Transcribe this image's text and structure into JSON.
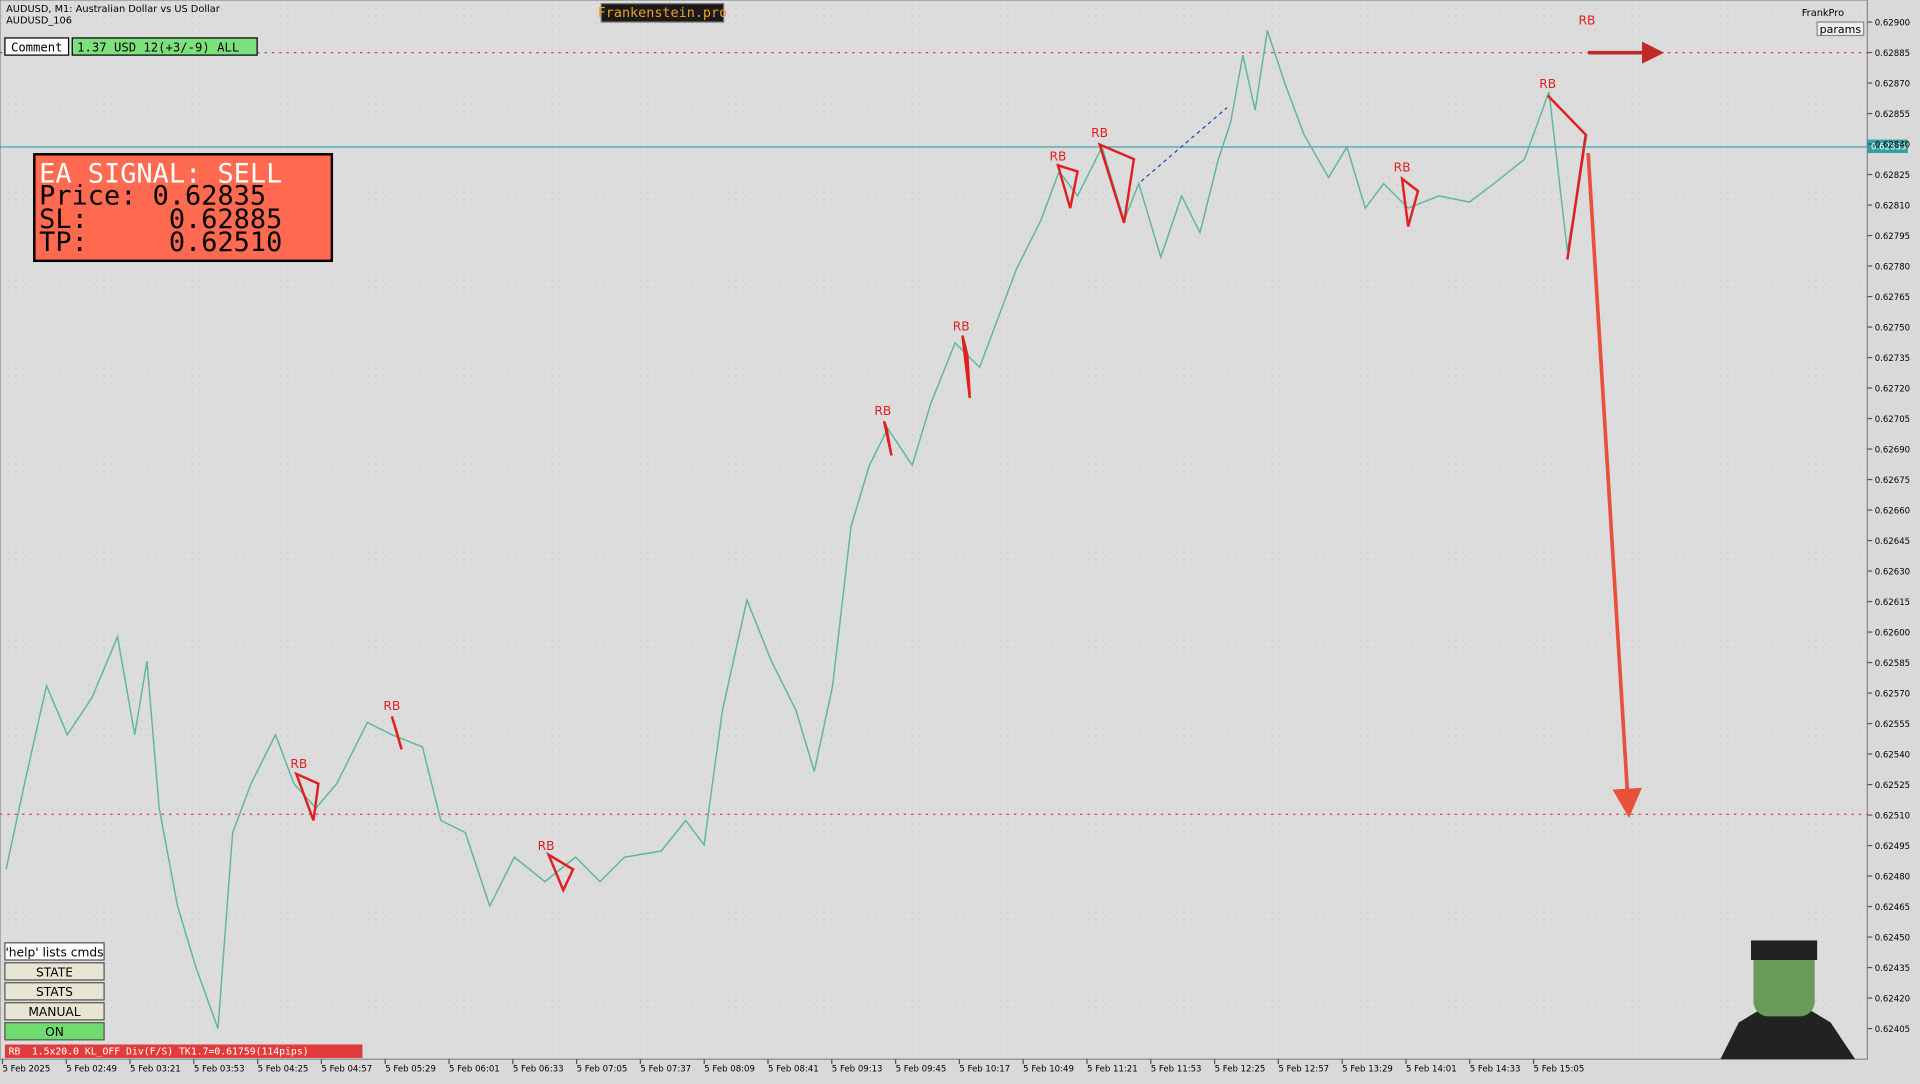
{
  "header": {
    "symbol": "AUDUSD, M1:  Australian Dollar vs US Dollar",
    "account": "AUDUSD_106",
    "brand": "Frankenstein.pro",
    "user": "FrankPro",
    "params": "params"
  },
  "comment": {
    "label": "Comment",
    "text": "1.37 USD 12(+3/-9) ALL"
  },
  "signal": {
    "title": "EA SIGNAL: SELL",
    "price": "Price: 0.62835",
    "sl": "SL:     0.62885",
    "tp": "TP:     0.62510"
  },
  "price_axis": [
    "0.62900",
    "0.62885",
    "0.62870",
    "0.62855",
    "0.62840",
    "0.62825",
    "0.62810",
    "0.62795",
    "0.62780",
    "0.62765",
    "0.62750",
    "0.62735",
    "0.62720",
    "0.62705",
    "0.62690",
    "0.62675",
    "0.62660",
    "0.62645",
    "0.62630",
    "0.62615",
    "0.62600",
    "0.62585",
    "0.62570",
    "0.62555",
    "0.62540",
    "0.62525",
    "0.62510",
    "0.62495",
    "0.62480",
    "0.62465",
    "0.62450",
    "0.62435",
    "0.62420",
    "0.62405"
  ],
  "current_price": "0.62839",
  "time_axis": [
    "5 Feb 2025",
    "5 Feb 02:49",
    "5 Feb 03:21",
    "5 Feb 03:53",
    "5 Feb 04:25",
    "5 Feb 04:57",
    "5 Feb 05:29",
    "5 Feb 06:01",
    "5 Feb 06:33",
    "5 Feb 07:05",
    "5 Feb 07:37",
    "5 Feb 08:09",
    "5 Feb 08:41",
    "5 Feb 09:13",
    "5 Feb 09:45",
    "5 Feb 10:17",
    "5 Feb 10:49",
    "5 Feb 11:21",
    "5 Feb 11:53",
    "5 Feb 12:25",
    "5 Feb 12:57",
    "5 Feb 13:29",
    "5 Feb 14:01",
    "5 Feb 14:33",
    "5 Feb 15:05"
  ],
  "pattern_labels": [
    "RB",
    "RB",
    "RB",
    "RB",
    "RB",
    "RB",
    "RB",
    "RB",
    "RB",
    "RB"
  ],
  "buttons": [
    "'help' lists cmds",
    "STATE",
    "STATS",
    "MANUAL",
    "ON"
  ],
  "status": {
    "tag": "RB",
    "text": "1.5x20.0 KL_OFF Div(F/S) TK1.7=0.61759(114pips)"
  }
}
